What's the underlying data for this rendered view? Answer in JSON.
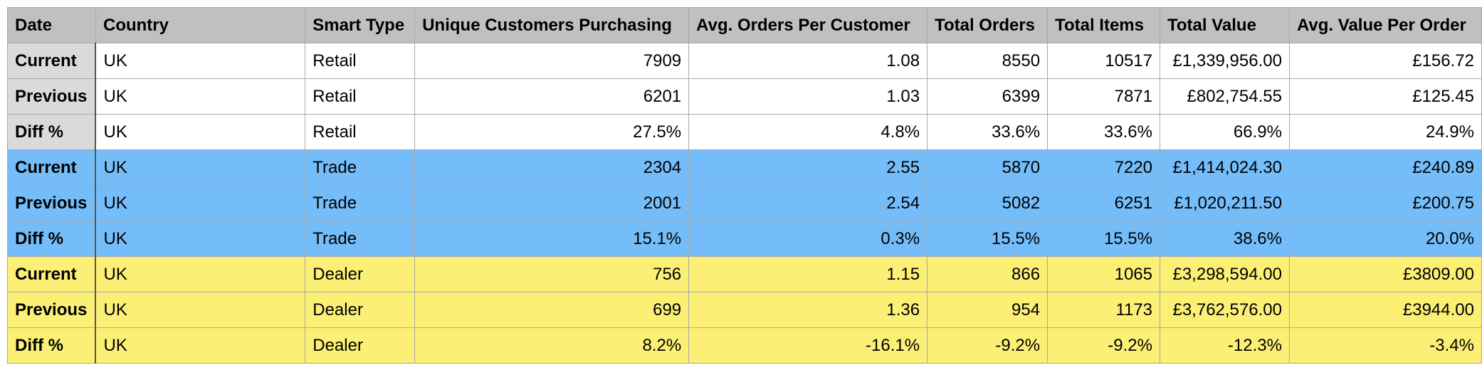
{
  "table": {
    "columns": [
      "Date",
      "Country",
      "Smart Type",
      "Unique Customers Purchasing",
      "Avg. Orders Per Customer",
      "Total Orders",
      "Total Items",
      "Total Value",
      "Avg. Value Per Order"
    ],
    "rows": [
      {
        "group": "Retail",
        "cells": [
          "Current",
          "UK",
          "Retail",
          "7909",
          "1.08",
          "8550",
          "10517",
          "£1,339,956.00",
          "£156.72"
        ]
      },
      {
        "group": "Retail",
        "cells": [
          "Previous",
          "UK",
          "Retail",
          "6201",
          "1.03",
          "6399",
          "7871",
          "£802,754.55",
          "£125.45"
        ]
      },
      {
        "group": "Retail",
        "cells": [
          "Diff %",
          "UK",
          "Retail",
          "27.5%",
          "4.8%",
          "33.6%",
          "33.6%",
          "66.9%",
          "24.9%"
        ]
      },
      {
        "group": "Trade",
        "cells": [
          "Current",
          "UK",
          "Trade",
          "2304",
          "2.55",
          "5870",
          "7220",
          "£1,414,024.30",
          "£240.89"
        ]
      },
      {
        "group": "Trade",
        "cells": [
          "Previous",
          "UK",
          "Trade",
          "2001",
          "2.54",
          "5082",
          "6251",
          "£1,020,211.50",
          "£200.75"
        ]
      },
      {
        "group": "Trade",
        "cells": [
          "Diff %",
          "UK",
          "Trade",
          "15.1%",
          "0.3%",
          "15.5%",
          "15.5%",
          "38.6%",
          "20.0%"
        ]
      },
      {
        "group": "Dealer",
        "cells": [
          "Current",
          "UK",
          "Dealer",
          "756",
          "1.15",
          "866",
          "1065",
          "£3,298,594.00",
          "£3809.00"
        ]
      },
      {
        "group": "Dealer",
        "cells": [
          "Previous",
          "UK",
          "Dealer",
          "699",
          "1.36",
          "954",
          "1173",
          "£3,762,576.00",
          "£3944.00"
        ]
      },
      {
        "group": "Dealer",
        "cells": [
          "Diff %",
          "UK",
          "Dealer",
          "8.2%",
          "-16.1%",
          "-9.2%",
          "-9.2%",
          "-12.3%",
          "-3.4%"
        ]
      }
    ]
  },
  "colors": {
    "header_bg": "#c0c0c0",
    "retail_bg": "#ffffff",
    "retail_date_bg": "#dadada",
    "trade_bg": "#74bdf9",
    "dealer_bg": "#fbf075",
    "grid_line": "#a8a8a8"
  }
}
